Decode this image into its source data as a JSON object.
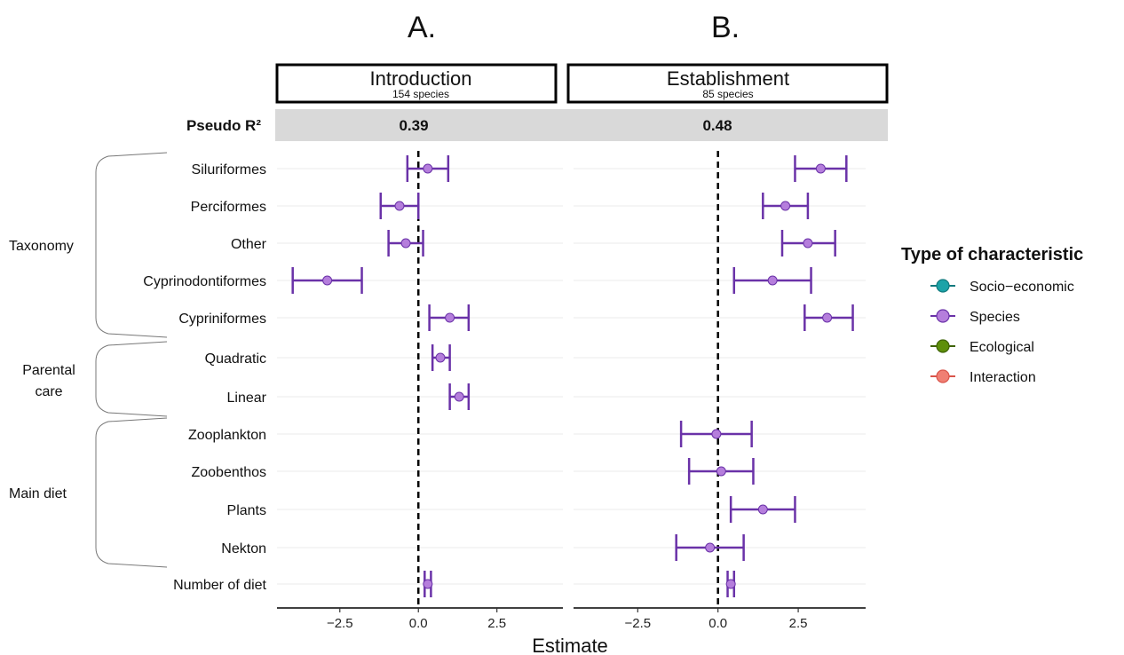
{
  "panel_letters": [
    "A.",
    "B."
  ],
  "r2_label": "Pseudo R²",
  "x_axis_title": "Estimate",
  "legend": {
    "title": "Type of characteristic",
    "items": [
      {
        "label": "Socio−economic",
        "color": "#1BA3A8",
        "stroke": "#127a7e"
      },
      {
        "label": "Species",
        "color": "#B57EDC",
        "stroke": "#6A32A8"
      },
      {
        "label": "Ecological",
        "color": "#5E8F0B",
        "stroke": "#3f6307"
      },
      {
        "label": "Interaction",
        "color": "#F07F73",
        "stroke": "#d9544a"
      }
    ]
  },
  "groups": [
    {
      "label": "Taxonomy",
      "from": 0,
      "to": 4
    },
    {
      "label": "Parental\ncare",
      "from": 5,
      "to": 6
    },
    {
      "label": "Main diet",
      "from": 7,
      "to": 10
    }
  ],
  "rows": [
    "Siluriformes",
    "Perciformes",
    "Other",
    "Cyprinodontiformes",
    "Cypriniformes",
    "Quadratic",
    "Linear",
    "Zooplankton",
    "Zoobenthos",
    "Plants",
    "Nekton",
    "Number of diet"
  ],
  "chart_data": {
    "type": "scatter",
    "x_ticks": [
      -2.5,
      0.0,
      2.5
    ],
    "x_tick_labels": [
      "−2.5",
      "0.0",
      "2.5"
    ],
    "reference_line": 0,
    "panels": [
      {
        "title": "Introduction",
        "subtitle": "154 species",
        "pseudo_r2": "0.39",
        "xlim": [
          -4.5,
          4.6
        ],
        "points": [
          {
            "row": "Siluriformes",
            "type": "Species",
            "estimate": 0.3,
            "low": -0.35,
            "high": 0.95
          },
          {
            "row": "Perciformes",
            "type": "Species",
            "estimate": -0.6,
            "low": -1.2,
            "high": 0.0
          },
          {
            "row": "Other",
            "type": "Species",
            "estimate": -0.4,
            "low": -0.95,
            "high": 0.15
          },
          {
            "row": "Cyprinodontiformes",
            "type": "Species",
            "estimate": -2.9,
            "low": -4.0,
            "high": -1.8
          },
          {
            "row": "Cypriniformes",
            "type": "Species",
            "estimate": 1.0,
            "low": 0.35,
            "high": 1.6
          },
          {
            "row": "Quadratic",
            "type": "Species",
            "estimate": 0.7,
            "low": 0.45,
            "high": 1.0
          },
          {
            "row": "Linear",
            "type": "Species",
            "estimate": 1.3,
            "low": 1.0,
            "high": 1.6
          },
          {
            "row": "Number of diet",
            "type": "Species",
            "estimate": 0.3,
            "low": 0.2,
            "high": 0.4
          }
        ]
      },
      {
        "title": "Establishment",
        "subtitle": "85 species",
        "pseudo_r2": "0.48",
        "xlim": [
          -4.5,
          4.6
        ],
        "points": [
          {
            "row": "Siluriformes",
            "type": "Species",
            "estimate": 3.2,
            "low": 2.4,
            "high": 4.0
          },
          {
            "row": "Perciformes",
            "type": "Species",
            "estimate": 2.1,
            "low": 1.4,
            "high": 2.8
          },
          {
            "row": "Other",
            "type": "Species",
            "estimate": 2.8,
            "low": 2.0,
            "high": 3.65
          },
          {
            "row": "Cyprinodontiformes",
            "type": "Species",
            "estimate": 1.7,
            "low": 0.5,
            "high": 2.9
          },
          {
            "row": "Cypriniformes",
            "type": "Species",
            "estimate": 3.4,
            "low": 2.7,
            "high": 4.2
          },
          {
            "row": "Zooplankton",
            "type": "Species",
            "estimate": -0.05,
            "low": -1.15,
            "high": 1.05
          },
          {
            "row": "Zoobenthos",
            "type": "Species",
            "estimate": 0.1,
            "low": -0.9,
            "high": 1.1
          },
          {
            "row": "Plants",
            "type": "Species",
            "estimate": 1.4,
            "low": 0.4,
            "high": 2.4
          },
          {
            "row": "Nekton",
            "type": "Species",
            "estimate": -0.25,
            "low": -1.3,
            "high": 0.8
          },
          {
            "row": "Number of diet",
            "type": "Species",
            "estimate": 0.4,
            "low": 0.3,
            "high": 0.5
          }
        ]
      }
    ]
  }
}
